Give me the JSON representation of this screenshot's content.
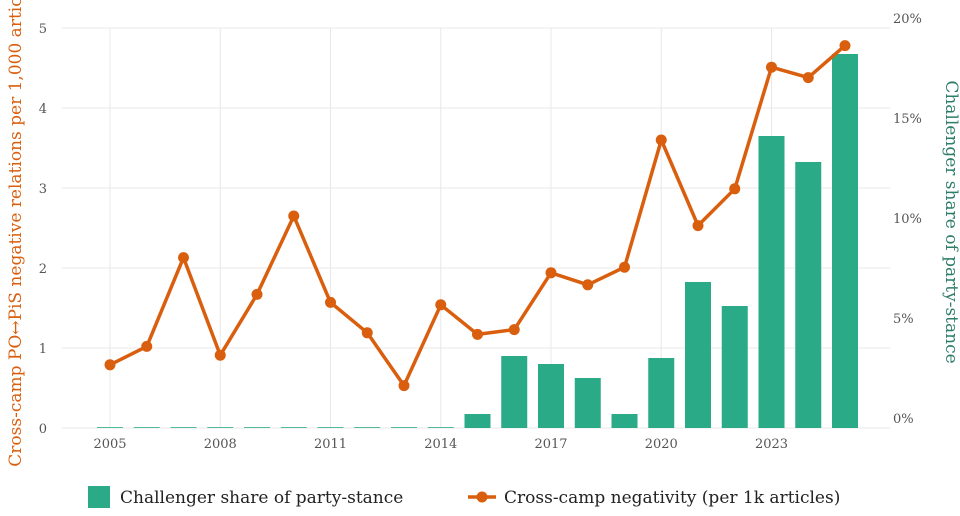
{
  "chart_data": {
    "type": "bar+line",
    "x_ticks": [
      2005,
      2008,
      2011,
      2014,
      2017,
      2020,
      2023
    ],
    "years": [
      2005,
      2006,
      2007,
      2008,
      2009,
      2010,
      2011,
      2012,
      2013,
      2014,
      2015,
      2016,
      2017,
      2018,
      2019,
      2020,
      2021,
      2022,
      2023,
      2024,
      2025
    ],
    "series": [
      {
        "name": "Challenger share of party-stance",
        "kind": "bar",
        "axis": "right",
        "color": "#2aaa87",
        "values": [
          0,
          0,
          0,
          0,
          0,
          0,
          0,
          0,
          0,
          0,
          0.7,
          3.6,
          3.2,
          2.5,
          0.7,
          3.5,
          7.3,
          6.1,
          14.6,
          13.3,
          18.7
        ]
      },
      {
        "name": "Cross-camp negativity (per 1k articles)",
        "kind": "line",
        "axis": "left",
        "color": "#d95f0e",
        "values": [
          0.79,
          1.02,
          2.13,
          0.91,
          1.67,
          2.65,
          1.57,
          1.19,
          0.53,
          1.54,
          1.17,
          1.23,
          1.94,
          1.79,
          2.01,
          3.6,
          2.53,
          2.99,
          4.51,
          4.38,
          4.78
        ]
      }
    ],
    "left_axis": {
      "label": "Cross-camp PO↔PiS negative relations per 1,000 artic",
      "ylim": [
        0,
        5
      ],
      "ticks": [
        "0",
        "1",
        "2",
        "3",
        "4",
        "5"
      ],
      "color": "#d95f0e"
    },
    "right_axis": {
      "label": "Challenger share of party-stance",
      "ylim": [
        0,
        20
      ],
      "ticks": [
        "0%",
        "5%",
        "10%",
        "15%",
        "20%"
      ],
      "color": "#2e7d6b"
    },
    "legend": {
      "position": "bottom",
      "items": [
        "Challenger share of party-stance",
        "Cross-camp negativity (per 1k articles)"
      ]
    },
    "grid": true
  }
}
